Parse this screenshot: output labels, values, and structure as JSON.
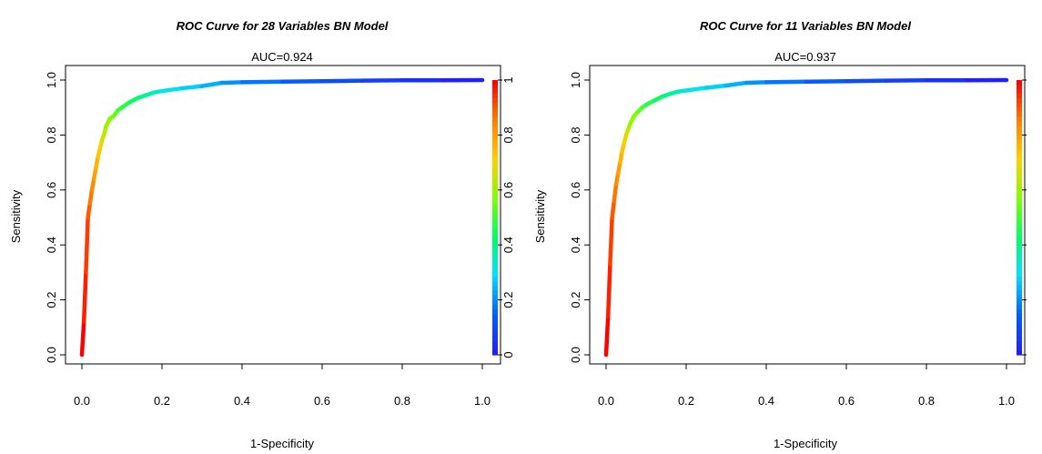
{
  "chart_data": [
    {
      "type": "line",
      "title": "ROC Curve for 28 Variables BN Model",
      "subtitle": "AUC=0.924",
      "xlabel": "1-Specificity",
      "ylabel": "Sensitivity",
      "xlim": [
        0,
        1
      ],
      "ylim": [
        0,
        1
      ],
      "x_ticks": [
        "0.0",
        "0.2",
        "0.4",
        "0.6",
        "0.8",
        "1.0"
      ],
      "y_ticks": [
        "0.0",
        "0.2",
        "0.4",
        "0.6",
        "0.8",
        "1.0"
      ],
      "colorbar_ticks": [
        "0",
        "0.2",
        "0.4",
        "0.6",
        "0.8",
        "1"
      ],
      "colorbar_colors": [
        "#ff0000",
        "#ff8000",
        "#ffd000",
        "#80ff00",
        "#00ff60",
        "#00e0ff",
        "#0060ff",
        "#2020ff"
      ],
      "grid": false,
      "series": [
        {
          "x": [
            0.0,
            0.005,
            0.01,
            0.015,
            0.02,
            0.025,
            0.03,
            0.035,
            0.04,
            0.045,
            0.05,
            0.055,
            0.06,
            0.07,
            0.08,
            0.09,
            0.1,
            0.12,
            0.14,
            0.16,
            0.18,
            0.2,
            0.25,
            0.3,
            0.35,
            0.4,
            0.5,
            0.6,
            0.7,
            0.8,
            0.9,
            1.0
          ],
          "y": [
            0.0,
            0.12,
            0.3,
            0.5,
            0.55,
            0.6,
            0.64,
            0.68,
            0.72,
            0.75,
            0.78,
            0.8,
            0.83,
            0.86,
            0.87,
            0.89,
            0.9,
            0.92,
            0.935,
            0.945,
            0.955,
            0.96,
            0.97,
            0.978,
            0.99,
            0.992,
            0.994,
            0.996,
            0.998,
            0.999,
            0.999,
            1.0
          ]
        }
      ]
    },
    {
      "type": "line",
      "title": "ROC Curve for 11 Variables BN Model",
      "subtitle": "AUC=0.937",
      "xlabel": "1-Specificity",
      "ylabel": "Sensitivity",
      "xlim": [
        0,
        1
      ],
      "ylim": [
        0,
        1
      ],
      "x_ticks": [
        "0.0",
        "0.2",
        "0.4",
        "0.6",
        "0.8",
        "1.0"
      ],
      "y_ticks": [
        "0.0",
        "0.2",
        "0.4",
        "0.6",
        "0.8",
        "1.0"
      ],
      "colorbar_colors": [
        "#ff0000",
        "#ff8000",
        "#ffd000",
        "#80ff00",
        "#00ff60",
        "#00e0ff",
        "#0060ff",
        "#2020ff"
      ],
      "grid": false,
      "series": [
        {
          "x": [
            0.0,
            0.005,
            0.01,
            0.015,
            0.02,
            0.025,
            0.03,
            0.035,
            0.04,
            0.045,
            0.05,
            0.055,
            0.06,
            0.07,
            0.08,
            0.09,
            0.1,
            0.12,
            0.14,
            0.16,
            0.18,
            0.2,
            0.25,
            0.3,
            0.35,
            0.4,
            0.5,
            0.6,
            0.7,
            0.8,
            0.9,
            1.0
          ],
          "y": [
            0.0,
            0.14,
            0.33,
            0.5,
            0.56,
            0.62,
            0.66,
            0.7,
            0.74,
            0.77,
            0.8,
            0.82,
            0.84,
            0.87,
            0.885,
            0.9,
            0.91,
            0.925,
            0.94,
            0.95,
            0.958,
            0.962,
            0.972,
            0.98,
            0.99,
            0.992,
            0.994,
            0.996,
            0.998,
            0.999,
            0.999,
            1.0
          ]
        }
      ]
    }
  ]
}
